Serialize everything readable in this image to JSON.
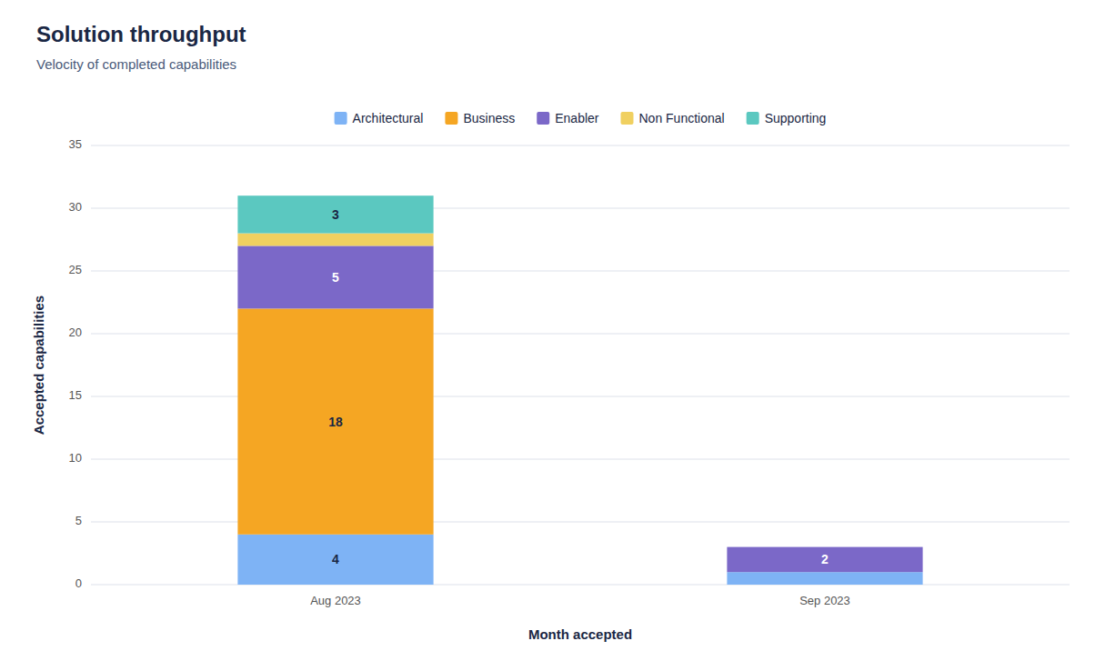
{
  "chart_data": {
    "type": "bar",
    "stacked": true,
    "title": "Solution throughput",
    "subtitle": "Velocity of completed capabilities",
    "xlabel": "Month accepted",
    "ylabel": "Accepted capabilities",
    "categories": [
      "Aug 2023",
      "Sep 2023"
    ],
    "series": [
      {
        "name": "Architectural",
        "color": "#7EB3F5",
        "values": [
          4,
          1
        ],
        "value_labels": [
          "4",
          null
        ]
      },
      {
        "name": "Business",
        "color": "#F5A623",
        "values": [
          18,
          0
        ],
        "value_labels": [
          "18",
          null
        ]
      },
      {
        "name": "Enabler",
        "color": "#7B68C8",
        "values": [
          5,
          2
        ],
        "value_labels": [
          "5",
          "2"
        ]
      },
      {
        "name": "Non Functional",
        "color": "#F0D060",
        "values": [
          1,
          0
        ],
        "value_labels": [
          null,
          null
        ]
      },
      {
        "name": "Supporting",
        "color": "#5BC8C0",
        "values": [
          3,
          0
        ],
        "value_labels": [
          "3",
          null
        ]
      }
    ],
    "ylim": [
      0,
      35
    ],
    "yticks": [
      0,
      5,
      10,
      15,
      20,
      25,
      30,
      35
    ],
    "grid": true,
    "legend": "top",
    "data_labels": true
  }
}
